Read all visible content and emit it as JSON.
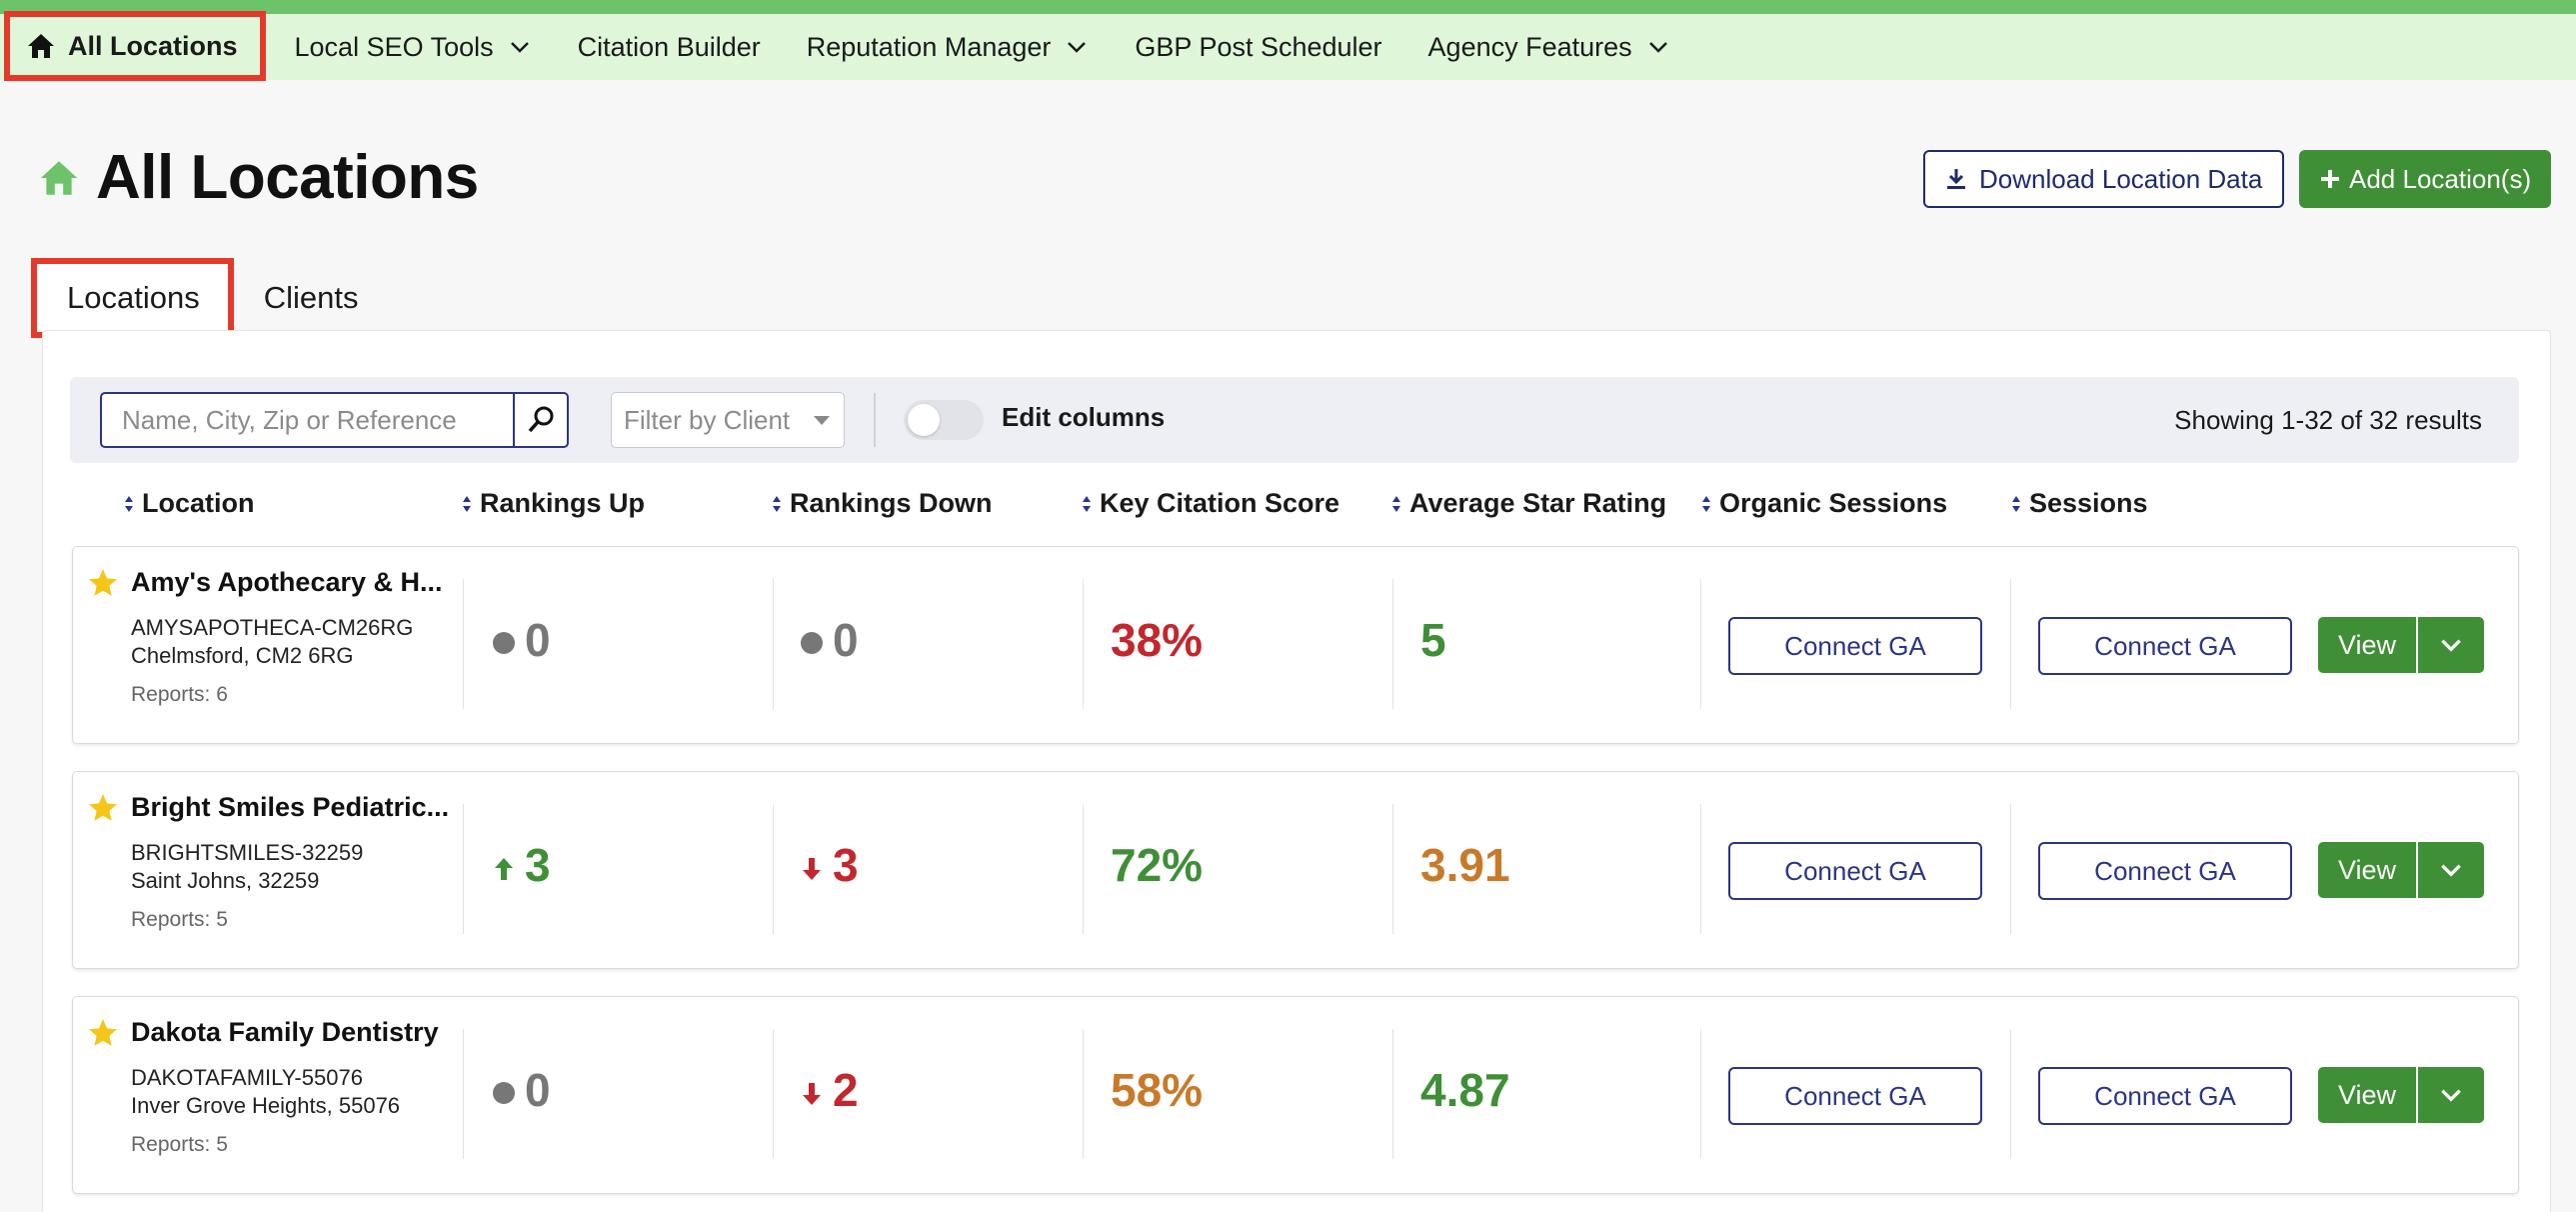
{
  "nav": {
    "items": [
      {
        "label": "All Locations"
      },
      {
        "label": "Local SEO Tools"
      },
      {
        "label": "Citation Builder"
      },
      {
        "label": "Reputation Manager"
      },
      {
        "label": "GBP Post Scheduler"
      },
      {
        "label": "Agency Features"
      }
    ]
  },
  "page": {
    "title": "All Locations",
    "download_label": "Download Location Data",
    "add_label": "Add Location(s)"
  },
  "tabs": [
    {
      "label": "Locations",
      "active": true
    },
    {
      "label": "Clients",
      "active": false
    }
  ],
  "toolbar": {
    "search_placeholder": "Name, City, Zip or Reference",
    "filter_placeholder": "Filter by Client",
    "edit_columns_label": "Edit columns",
    "showing_text": "Showing 1-32 of 32 results"
  },
  "columns": [
    "Location",
    "Rankings Up",
    "Rankings Down",
    "Key Citation Score",
    "Average Star Rating",
    "Organic Sessions",
    "Sessions"
  ],
  "rows": [
    {
      "name": "Amy's Apothecary & H...",
      "reference": "AMYSAPOTHECA-CM26RG",
      "city": "Chelmsford, CM2 6RG",
      "reports": "Reports: 6",
      "rankings_up": "0",
      "rankings_down": "0",
      "citation_score": "38%",
      "star_rating": "5",
      "organic_sessions": "Connect GA",
      "sessions": "Connect GA",
      "view_label": "View"
    },
    {
      "name": "Bright Smiles Pediatric...",
      "reference": "BRIGHTSMILES-32259",
      "city": "Saint Johns, 32259",
      "reports": "Reports: 5",
      "rankings_up": "3",
      "rankings_down": "3",
      "citation_score": "72%",
      "star_rating": "3.91",
      "organic_sessions": "Connect GA",
      "sessions": "Connect GA",
      "view_label": "View"
    },
    {
      "name": "Dakota Family Dentistry",
      "reference": "DAKOTAFAMILY-55076",
      "city": "Inver Grove Heights, 55076",
      "reports": "Reports: 5",
      "rankings_up": "0",
      "rankings_down": "2",
      "citation_score": "58%",
      "star_rating": "4.87",
      "organic_sessions": "Connect GA",
      "sessions": "Connect GA",
      "view_label": "View"
    }
  ],
  "colors": {
    "accent_green": "#3f8f36",
    "nav_bg": "#dff6d9",
    "highlight_red": "#e53a2a",
    "navy": "#2c3583",
    "positive": "#3f8f36",
    "negative": "#c2272d",
    "warning": "#c87a2a"
  }
}
